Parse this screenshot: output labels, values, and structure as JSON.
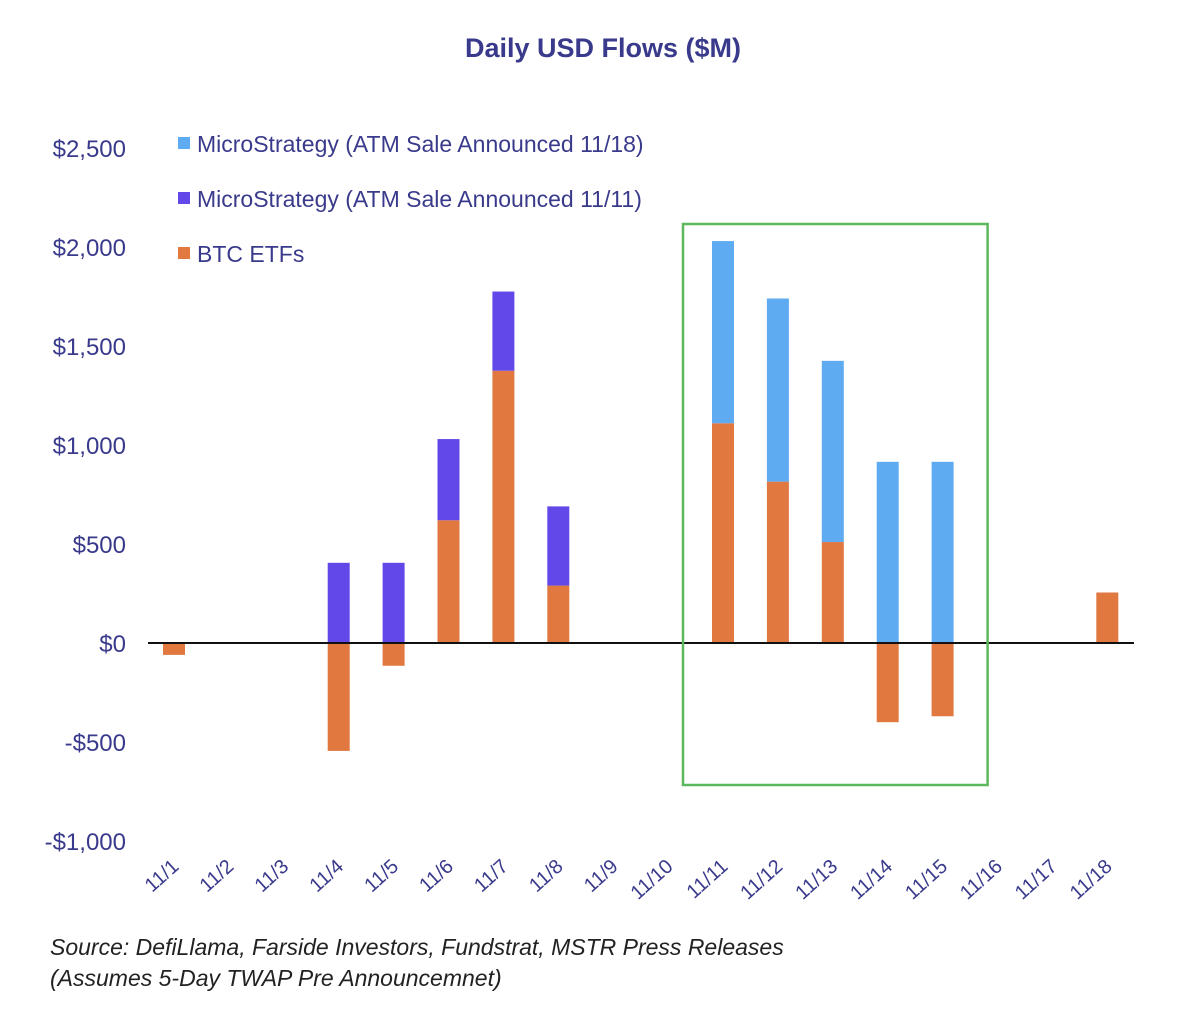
{
  "chart_data": {
    "type": "bar",
    "stacked": true,
    "title": "Daily USD Flows ($M)",
    "xlabel": "",
    "ylabel": "",
    "ylim": [
      -1000,
      2500
    ],
    "yticks": [
      2500,
      2000,
      1500,
      1000,
      500,
      0,
      -500,
      -1000
    ],
    "ytick_labels": [
      "$2,500",
      "$2,000",
      "$1,500",
      "$1,000",
      "$500",
      "$0",
      "-$500",
      "-$1,000"
    ],
    "grid": false,
    "legend_position": "top-left",
    "categories": [
      "11/1",
      "11/2",
      "11/3",
      "11/4",
      "11/5",
      "11/6",
      "11/7",
      "11/8",
      "11/9",
      "11/10",
      "11/11",
      "11/12",
      "11/13",
      "11/14",
      "11/15",
      "11/16",
      "11/17",
      "11/18"
    ],
    "series": [
      {
        "name": "BTC ETFs",
        "color": "#e07840",
        "values": [
          -60,
          0,
          0,
          -545,
          -115,
          620,
          1375,
          290,
          0,
          0,
          1110,
          815,
          510,
          -400,
          -370,
          0,
          0,
          255
        ]
      },
      {
        "name": "MicroStrategy (ATM Sale Announced 11/11)",
        "color": "#6248e8",
        "values": [
          0,
          0,
          0,
          405,
          405,
          410,
          400,
          400,
          0,
          0,
          0,
          0,
          0,
          0,
          0,
          0,
          0,
          0
        ]
      },
      {
        "name": "MicroStrategy (ATM Sale Announced 11/18)",
        "color": "#5eabf2",
        "values": [
          0,
          0,
          0,
          0,
          0,
          0,
          0,
          0,
          0,
          0,
          920,
          925,
          915,
          915,
          915,
          0,
          0,
          0
        ]
      }
    ],
    "legend_order": [
      2,
      1,
      0
    ],
    "highlight": {
      "from": "11/11",
      "to": "11/15",
      "color": "#5cb85c"
    },
    "axis_color": "#111111",
    "text_color": "#3a3a8c"
  },
  "source": {
    "line1": "Source: DefiLlama, Farside Investors, Fundstrat, MSTR Press Releases",
    "line2": "(Assumes 5-Day TWAP Pre Announcemnet)"
  }
}
